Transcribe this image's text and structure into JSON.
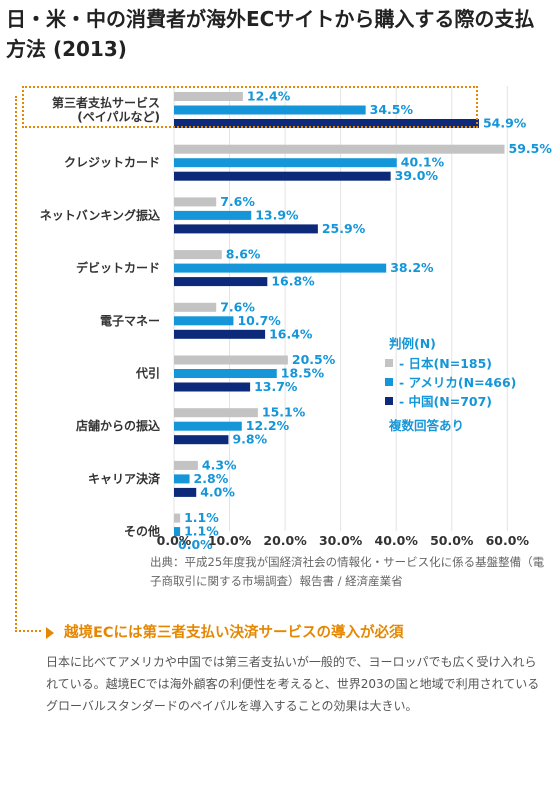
{
  "title": "日・米・中の消費者が海外ECサイトから購入する際の支払方法 (2013)",
  "source": "出典：平成25年度我が国経済社会の情報化・サービス化に係る基盤整備（電子商取引に関する市場調査）報告書 / 経済産業省",
  "callout": "越境ECには第三者支払い決済サービスの導入が必須",
  "body_text": "日本に比べてアメリカや中国では第三者支払いが一般的で、ヨーロッパでも広く受け入れられている。越境ECでは海外顧客の利便性を考えると、世界203の国と地域で利用されているグローバルスタンダードのペイパルを導入することの効果は大きい。",
  "colors": {
    "japan": "#c3c3c3",
    "usa": "#1596d8",
    "china": "#0d2a7a",
    "accent": "#e58700",
    "label": "#1596d8"
  },
  "chart_data": {
    "type": "bar",
    "orientation": "horizontal",
    "categories": [
      [
        "第三者支払サービス",
        "(ペイパルなど)"
      ],
      [
        "クレジットカード"
      ],
      [
        "ネットバンキング振込"
      ],
      [
        "デビットカード"
      ],
      [
        "電子マネー"
      ],
      [
        "代引"
      ],
      [
        "店舗からの振込"
      ],
      [
        "キャリア決済"
      ],
      [
        "その他"
      ]
    ],
    "series": [
      {
        "name": "日本(N=185)",
        "values": [
          12.4,
          59.5,
          7.6,
          8.6,
          7.6,
          20.5,
          15.1,
          4.3,
          1.1
        ]
      },
      {
        "name": "アメリカ(N=466)",
        "values": [
          34.5,
          40.1,
          13.9,
          38.2,
          10.7,
          18.5,
          12.2,
          2.8,
          1.1
        ]
      },
      {
        "name": "中国(N=707)",
        "values": [
          54.9,
          39.0,
          25.9,
          16.8,
          16.4,
          13.7,
          9.8,
          4.0,
          0.0
        ]
      }
    ],
    "xlim": [
      0,
      60
    ],
    "xticks": [
      "0.0%",
      "10.0%",
      "20.0%",
      "30.0%",
      "40.0%",
      "50.0%",
      "60.0%"
    ],
    "legend": {
      "title": "判例(N)",
      "items": [
        "- 日本(N=185)",
        "- アメリカ(N=466)",
        "- 中国(N=707)"
      ],
      "note": "複数回答あり",
      "placement": "right"
    },
    "grid": true
  }
}
